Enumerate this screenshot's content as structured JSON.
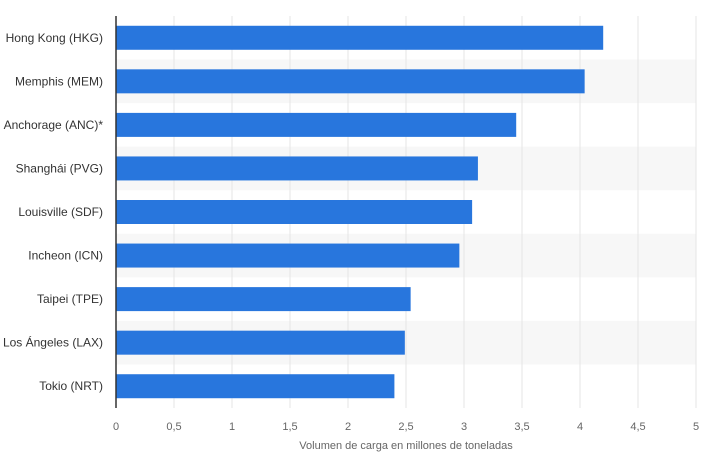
{
  "chart_data": {
    "type": "bar",
    "orientation": "horizontal",
    "categories": [
      "Hong Kong (HKG)",
      "Memphis (MEM)",
      "Anchorage (ANC)*",
      "Shanghái (PVG)",
      "Louisville (SDF)",
      "Incheon (ICN)",
      "Taipei (TPE)",
      "Los Ángeles (LAX)",
      "Tokio (NRT)"
    ],
    "values": [
      4.2,
      4.04,
      3.45,
      3.12,
      3.07,
      2.96,
      2.54,
      2.49,
      2.4
    ],
    "title": "",
    "xlabel": "Volumen de carga en millones de toneladas",
    "ylabel": "",
    "xlim": [
      0,
      5
    ],
    "xticks": [
      0,
      0.5,
      1,
      1.5,
      2,
      2.5,
      3,
      3.5,
      4,
      4.5,
      5
    ],
    "xtick_labels": [
      "0",
      "0,5",
      "1",
      "1,5",
      "2",
      "2,5",
      "3",
      "3,5",
      "4",
      "4,5",
      "5"
    ],
    "grid": true,
    "bar_color": "#2876dd",
    "band_color": "#f7f7f7",
    "grid_color": "#e6e6e6",
    "axis_color": "#333333"
  }
}
